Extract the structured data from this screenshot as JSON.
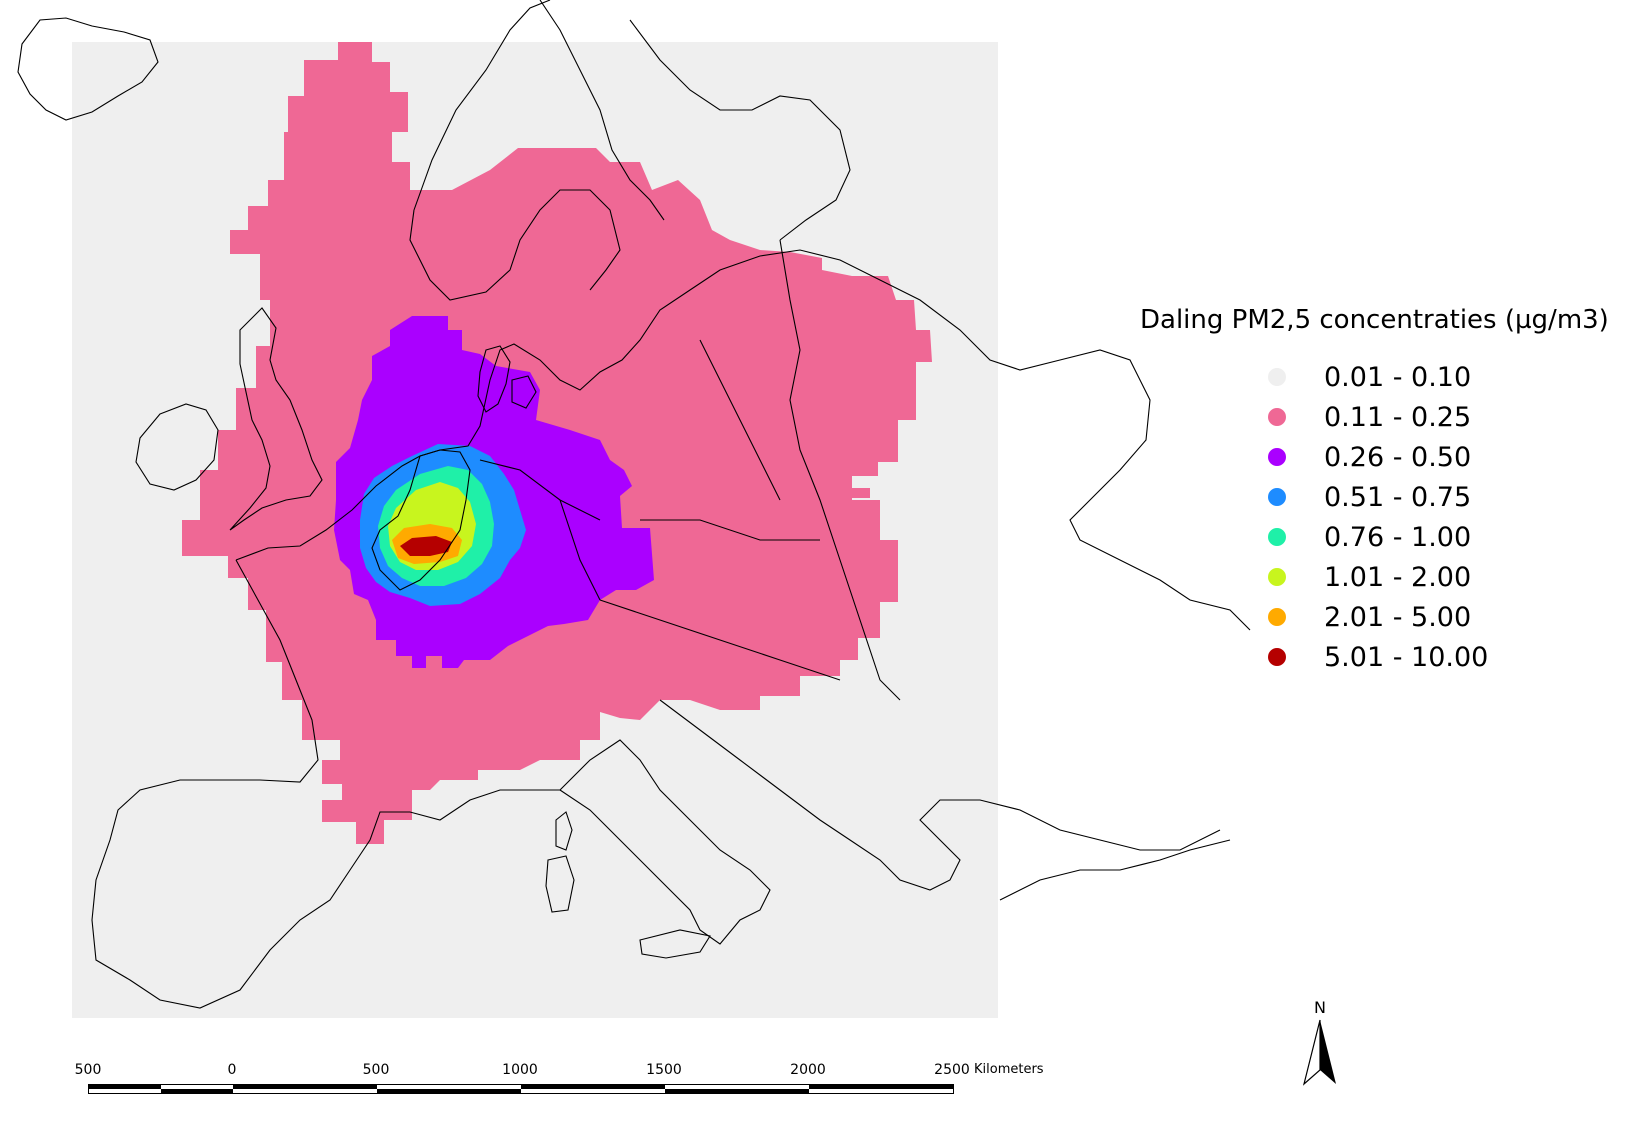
{
  "map": {
    "background_color": "#efefef",
    "land_outline_color": "#000000",
    "region": "Europe",
    "legend": {
      "title": "Daling PM2,5 concentraties (µg/m3)",
      "classes": [
        {
          "label": "0.01 - 0.10",
          "color": "#efefef"
        },
        {
          "label": "0.11 - 0.25",
          "color": "#ef6895"
        },
        {
          "label": "0.26 - 0.50",
          "color": "#aa00ff"
        },
        {
          "label": "0.51 - 0.75",
          "color": "#1e8cff"
        },
        {
          "label": "0.76 - 1.00",
          "color": "#1ff0a8"
        },
        {
          "label": "1.01 - 2.00",
          "color": "#c8f51e"
        },
        {
          "label": "2.01 - 5.00",
          "color": "#ffaa00"
        },
        {
          "label": "5.01 - 10.00",
          "color": "#b50000"
        }
      ]
    },
    "north_arrow": {
      "letter": "N",
      "icon": "north-arrow-icon"
    },
    "scale_bar": {
      "ticks": [
        "500",
        "0",
        "500",
        "1000",
        "1500",
        "2000",
        "2500"
      ],
      "unit": "Kilometers"
    }
  }
}
